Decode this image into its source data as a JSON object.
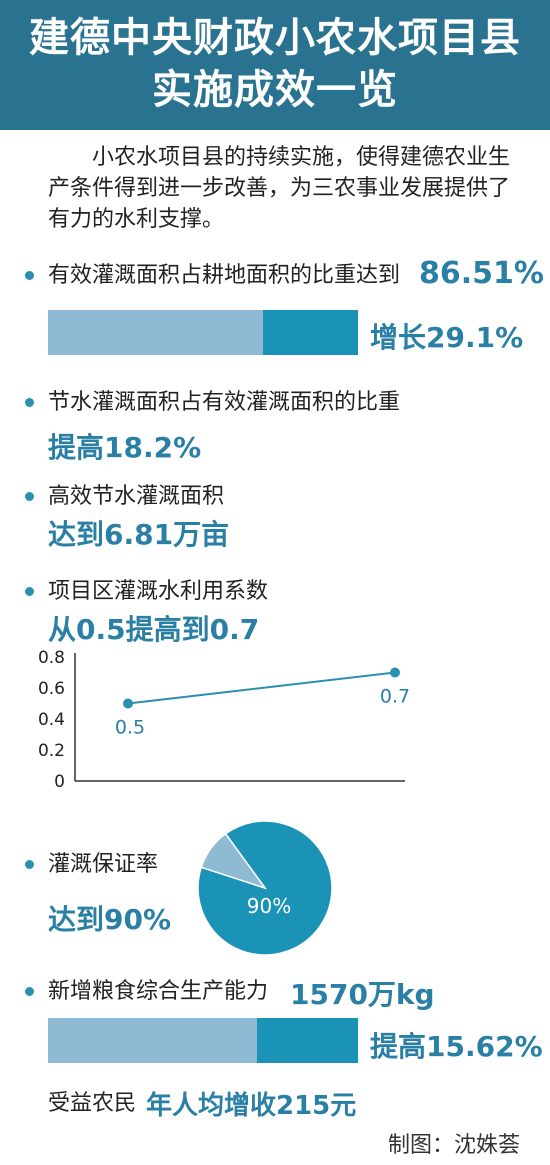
{
  "title_line1": "建德中央财政小农水项目县",
  "title_line2": "实施成效一览",
  "intro": "小农水项目县的持续实施，使得建德农业生产条件得到进一步改善，为三农事业发展提供了有力的水利支撑。",
  "item1": {
    "label": "有效灌溉面积占耕地面积的比重达到",
    "value": "86.51%",
    "growth": "增长29.1%",
    "bar_fraction": 0.8651
  },
  "item2": {
    "label": "节水灌溉面积占有效灌溉面积的比重",
    "value": "提高18.2%"
  },
  "item3": {
    "label": "高效节水灌溉面积",
    "value": "达到6.81万亩"
  },
  "item4": {
    "label": "项目区灌溉水利用系数",
    "value": "从0.5提高到0.7"
  },
  "item5": {
    "label": "灌溉保证率",
    "value": "达到90%"
  },
  "item6": {
    "label": "新增粮食综合生产能力",
    "value": "1570万kg",
    "growth": "提高15.62%",
    "bar_fraction": 0.8438
  },
  "item7": {
    "label": "受益农民",
    "value": "年人均增收215元"
  },
  "credit": "制图：沈姝荟",
  "colors": {
    "header": "#2a7390",
    "accent": "#2a7fa5",
    "bar_light": "#8fbad3",
    "bar_dark": "#1a93b6",
    "line": "#2a90b0"
  },
  "chart_data": [
    {
      "type": "line",
      "x": [
        1,
        2
      ],
      "values": [
        0.5,
        0.7
      ],
      "point_labels": [
        "0.5",
        "0.7"
      ],
      "ylim": [
        0,
        0.8
      ],
      "yticks": [
        "0",
        "0.2",
        "0.4",
        "0.6",
        "0.8"
      ],
      "grid": false
    },
    {
      "type": "pie",
      "values": [
        90,
        10
      ],
      "slice_labels": [
        "90%",
        ""
      ],
      "colors": [
        "#1a93b6",
        "#8fbad3"
      ]
    }
  ]
}
